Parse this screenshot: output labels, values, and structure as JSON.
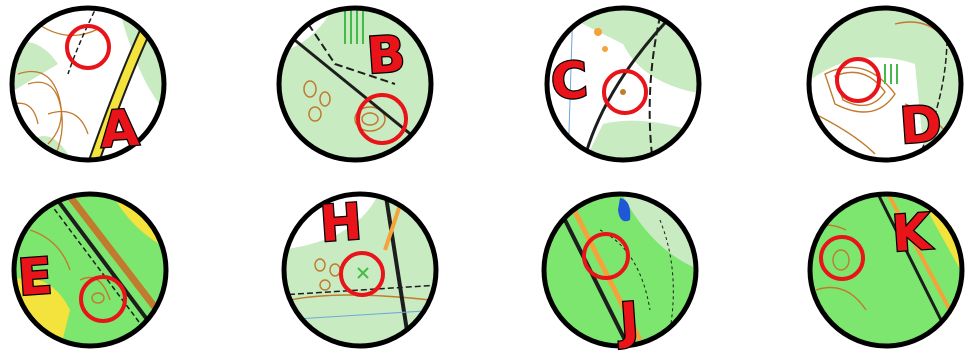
{
  "colors": {
    "open_land": "#ffffff",
    "forest": "#c9ebc2",
    "dense_forest": "#7de66f",
    "field": "#f4e33c",
    "contour": "#c07b2e",
    "track": "#1d1d1d",
    "water": "#1f57d6",
    "control_circle": "#e8141a",
    "frame": "#000000"
  },
  "panels": [
    {
      "letter": "A",
      "terrain": "mixed"
    },
    {
      "letter": "B",
      "terrain": "mixed"
    },
    {
      "letter": "C",
      "terrain": "open"
    },
    {
      "letter": "D",
      "terrain": "mixed"
    },
    {
      "letter": "E",
      "terrain": "green"
    },
    {
      "letter": "H",
      "terrain": "mixed"
    },
    {
      "letter": "J",
      "terrain": "green"
    },
    {
      "letter": "K",
      "terrain": "green"
    }
  ]
}
